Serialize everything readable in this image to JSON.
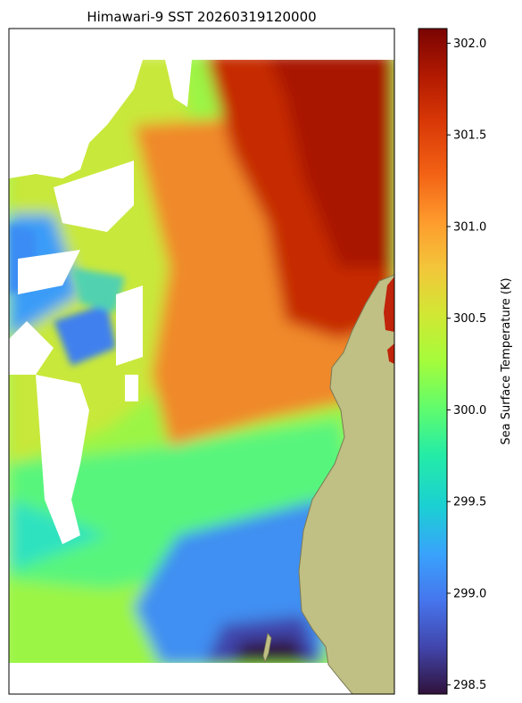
{
  "chart_data": {
    "type": "heatmap",
    "title": "Himawari-9 SST 20260319120000",
    "colorbar": {
      "label": "Sea Surface Temperature (K)",
      "ticks": [
        298.5,
        299.0,
        299.5,
        300.0,
        300.5,
        301.0,
        301.5,
        302.0
      ],
      "tick_labels": [
        "298.5",
        "299.0",
        "299.5",
        "300.0",
        "300.5",
        "301.0",
        "301.5",
        "302.0"
      ],
      "range": [
        298.45,
        302.08
      ],
      "colormap": "turbo"
    },
    "field_zones": [
      {
        "name": "northeast_offshore",
        "value": 301.8
      },
      {
        "name": "central_band",
        "value": 301.2
      },
      {
        "name": "western_coastal",
        "value": 300.8
      },
      {
        "name": "southern_waters",
        "value": 299.8
      },
      {
        "name": "southeast_near_coast",
        "value": 299.1
      },
      {
        "name": "southern_tip",
        "value": 298.6
      }
    ],
    "colors": {
      "land": "#c0bf84",
      "coastline": "#7a7a55",
      "missing": "#ffffff"
    }
  }
}
